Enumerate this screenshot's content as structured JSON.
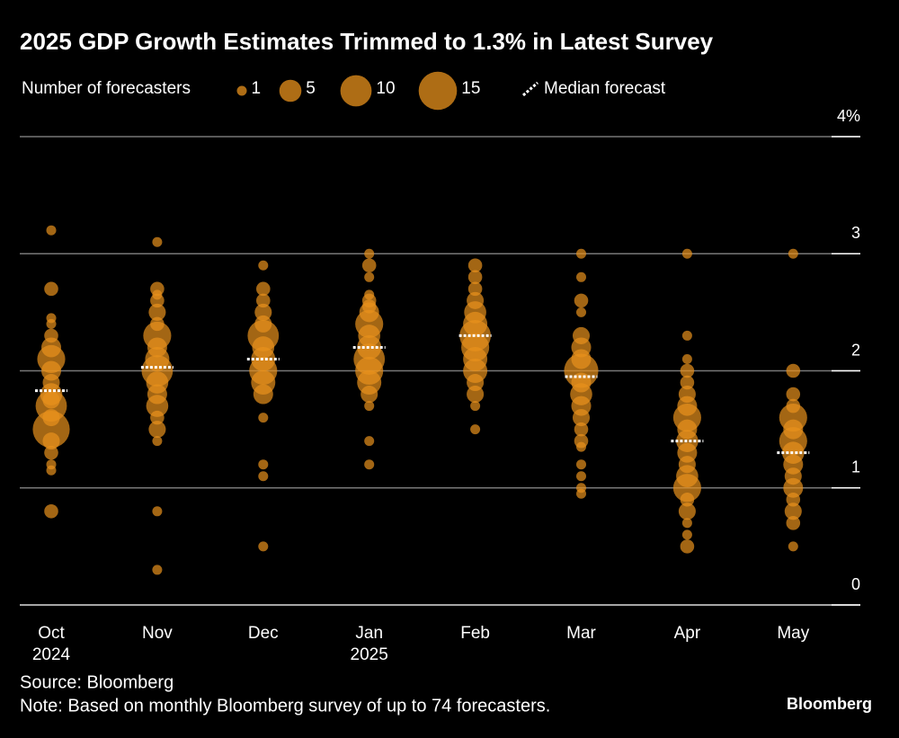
{
  "chart_data": {
    "type": "bubble",
    "title": "2025 GDP Growth Estimates Trimmed to 1.3% in Latest Survey",
    "size_legend": {
      "label": "Number of forecasters",
      "values": [
        1,
        5,
        10,
        15
      ]
    },
    "median_label": "Median forecast",
    "color": "#e8921c",
    "median_color": "#ffffff",
    "categories": [
      "Oct 2024",
      "Nov",
      "Dec",
      "Jan 2025",
      "Feb",
      "Mar",
      "Apr",
      "May"
    ],
    "points": [
      [
        {
          "y": 3.2,
          "n": 1
        },
        {
          "y": 2.7,
          "n": 2
        },
        {
          "y": 2.45,
          "n": 1
        },
        {
          "y": 2.4,
          "n": 1
        },
        {
          "y": 2.3,
          "n": 2
        },
        {
          "y": 2.2,
          "n": 4
        },
        {
          "y": 2.1,
          "n": 8
        },
        {
          "y": 2.0,
          "n": 4
        },
        {
          "y": 1.9,
          "n": 3
        },
        {
          "y": 1.8,
          "n": 5
        },
        {
          "y": 1.75,
          "n": 3
        },
        {
          "y": 1.7,
          "n": 10
        },
        {
          "y": 1.6,
          "n": 3
        },
        {
          "y": 1.5,
          "n": 14
        },
        {
          "y": 1.4,
          "n": 3
        },
        {
          "y": 1.3,
          "n": 2
        },
        {
          "y": 1.2,
          "n": 1
        },
        {
          "y": 1.15,
          "n": 1
        },
        {
          "y": 0.8,
          "n": 2
        }
      ],
      [
        {
          "y": 3.1,
          "n": 1
        },
        {
          "y": 2.7,
          "n": 2
        },
        {
          "y": 2.65,
          "n": 1
        },
        {
          "y": 2.6,
          "n": 2
        },
        {
          "y": 2.5,
          "n": 3
        },
        {
          "y": 2.4,
          "n": 2
        },
        {
          "y": 2.3,
          "n": 8
        },
        {
          "y": 2.2,
          "n": 4
        },
        {
          "y": 2.1,
          "n": 6
        },
        {
          "y": 2.0,
          "n": 10
        },
        {
          "y": 1.9,
          "n": 5
        },
        {
          "y": 1.8,
          "n": 4
        },
        {
          "y": 1.7,
          "n": 5
        },
        {
          "y": 1.6,
          "n": 2
        },
        {
          "y": 1.5,
          "n": 3
        },
        {
          "y": 1.4,
          "n": 1
        },
        {
          "y": 0.8,
          "n": 1
        },
        {
          "y": 0.3,
          "n": 1
        }
      ],
      [
        {
          "y": 2.9,
          "n": 1
        },
        {
          "y": 2.7,
          "n": 2
        },
        {
          "y": 2.6,
          "n": 2
        },
        {
          "y": 2.5,
          "n": 3
        },
        {
          "y": 2.4,
          "n": 3
        },
        {
          "y": 2.3,
          "n": 10
        },
        {
          "y": 2.2,
          "n": 5
        },
        {
          "y": 2.1,
          "n": 6
        },
        {
          "y": 2.0,
          "n": 8
        },
        {
          "y": 1.9,
          "n": 6
        },
        {
          "y": 1.8,
          "n": 4
        },
        {
          "y": 1.6,
          "n": 1
        },
        {
          "y": 1.2,
          "n": 1
        },
        {
          "y": 1.1,
          "n": 1
        },
        {
          "y": 0.5,
          "n": 1
        }
      ],
      [
        {
          "y": 3.0,
          "n": 1
        },
        {
          "y": 2.9,
          "n": 2
        },
        {
          "y": 2.8,
          "n": 1
        },
        {
          "y": 2.65,
          "n": 1
        },
        {
          "y": 2.6,
          "n": 2
        },
        {
          "y": 2.55,
          "n": 2
        },
        {
          "y": 2.5,
          "n": 4
        },
        {
          "y": 2.4,
          "n": 8
        },
        {
          "y": 2.3,
          "n": 5
        },
        {
          "y": 2.2,
          "n": 6
        },
        {
          "y": 2.1,
          "n": 10
        },
        {
          "y": 2.0,
          "n": 8
        },
        {
          "y": 1.9,
          "n": 6
        },
        {
          "y": 1.8,
          "n": 3
        },
        {
          "y": 1.7,
          "n": 1
        },
        {
          "y": 1.4,
          "n": 1
        },
        {
          "y": 1.2,
          "n": 1
        }
      ],
      [
        {
          "y": 2.9,
          "n": 2
        },
        {
          "y": 2.8,
          "n": 2
        },
        {
          "y": 2.7,
          "n": 2
        },
        {
          "y": 2.6,
          "n": 3
        },
        {
          "y": 2.5,
          "n": 5
        },
        {
          "y": 2.4,
          "n": 6
        },
        {
          "y": 2.3,
          "n": 10
        },
        {
          "y": 2.2,
          "n": 8
        },
        {
          "y": 2.1,
          "n": 6
        },
        {
          "y": 2.0,
          "n": 6
        },
        {
          "y": 1.9,
          "n": 3
        },
        {
          "y": 1.8,
          "n": 3
        },
        {
          "y": 1.7,
          "n": 1
        },
        {
          "y": 1.5,
          "n": 1
        }
      ],
      [
        {
          "y": 3.0,
          "n": 1
        },
        {
          "y": 2.8,
          "n": 1
        },
        {
          "y": 2.6,
          "n": 2
        },
        {
          "y": 2.5,
          "n": 1
        },
        {
          "y": 2.3,
          "n": 3
        },
        {
          "y": 2.2,
          "n": 4
        },
        {
          "y": 2.1,
          "n": 4
        },
        {
          "y": 2.0,
          "n": 12
        },
        {
          "y": 1.9,
          "n": 4
        },
        {
          "y": 1.8,
          "n": 5
        },
        {
          "y": 1.7,
          "n": 4
        },
        {
          "y": 1.6,
          "n": 3
        },
        {
          "y": 1.5,
          "n": 2
        },
        {
          "y": 1.4,
          "n": 2
        },
        {
          "y": 1.35,
          "n": 1
        },
        {
          "y": 1.2,
          "n": 1
        },
        {
          "y": 1.1,
          "n": 1
        },
        {
          "y": 1.0,
          "n": 1
        },
        {
          "y": 0.95,
          "n": 1
        }
      ],
      [
        {
          "y": 3.0,
          "n": 1
        },
        {
          "y": 2.3,
          "n": 1
        },
        {
          "y": 2.1,
          "n": 1
        },
        {
          "y": 2.0,
          "n": 2
        },
        {
          "y": 1.9,
          "n": 2
        },
        {
          "y": 1.8,
          "n": 3
        },
        {
          "y": 1.7,
          "n": 4
        },
        {
          "y": 1.6,
          "n": 8
        },
        {
          "y": 1.5,
          "n": 4
        },
        {
          "y": 1.4,
          "n": 5
        },
        {
          "y": 1.3,
          "n": 4
        },
        {
          "y": 1.2,
          "n": 3
        },
        {
          "y": 1.1,
          "n": 5
        },
        {
          "y": 1.0,
          "n": 8
        },
        {
          "y": 0.9,
          "n": 2
        },
        {
          "y": 0.8,
          "n": 3
        },
        {
          "y": 0.7,
          "n": 1
        },
        {
          "y": 0.6,
          "n": 1
        },
        {
          "y": 0.5,
          "n": 2
        }
      ],
      [
        {
          "y": 3.0,
          "n": 1
        },
        {
          "y": 2.0,
          "n": 2
        },
        {
          "y": 1.8,
          "n": 2
        },
        {
          "y": 1.7,
          "n": 2
        },
        {
          "y": 1.6,
          "n": 8
        },
        {
          "y": 1.5,
          "n": 4
        },
        {
          "y": 1.4,
          "n": 8
        },
        {
          "y": 1.3,
          "n": 5
        },
        {
          "y": 1.2,
          "n": 4
        },
        {
          "y": 1.1,
          "n": 3
        },
        {
          "y": 1.0,
          "n": 4
        },
        {
          "y": 0.9,
          "n": 2
        },
        {
          "y": 0.8,
          "n": 3
        },
        {
          "y": 0.7,
          "n": 2
        },
        {
          "y": 0.5,
          "n": 1
        }
      ]
    ],
    "medians": [
      1.83,
      2.03,
      2.1,
      2.2,
      2.3,
      1.95,
      1.4,
      1.3
    ],
    "ylim": [
      0,
      4
    ],
    "yticks": [
      0,
      1,
      2,
      3,
      {
        "value": 4,
        "label": "4%"
      }
    ],
    "grid": true,
    "source": "Source: Bloomberg",
    "note": "Note: Based on monthly Bloomberg survey of up to 74 forecasters.",
    "brand": "Bloomberg"
  }
}
